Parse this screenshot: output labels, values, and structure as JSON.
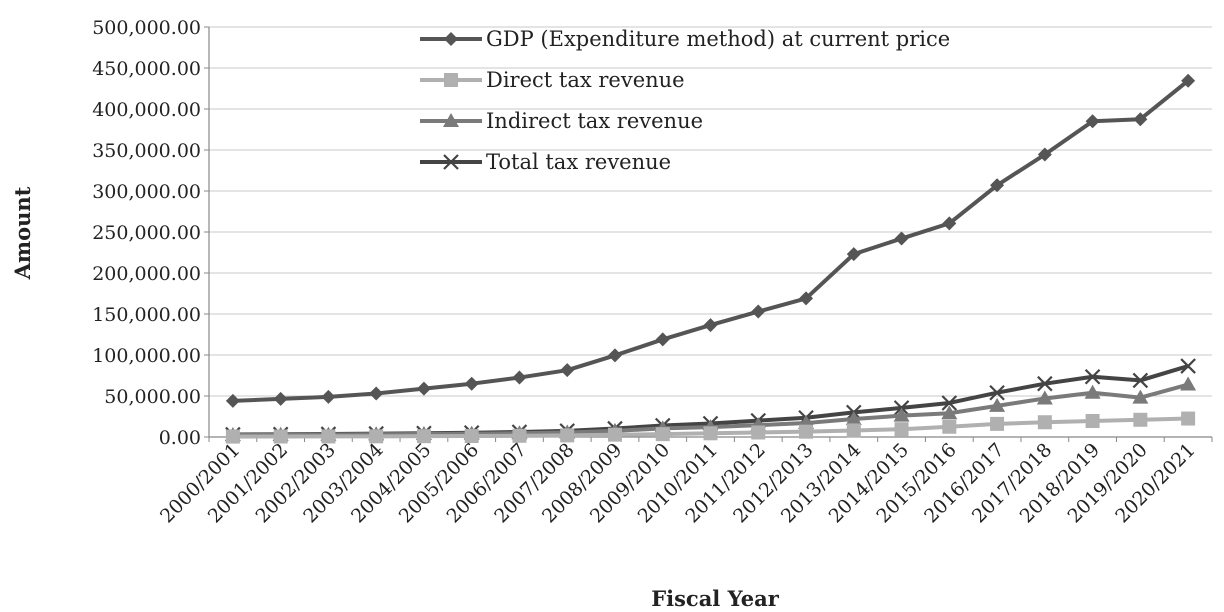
{
  "chart_data": {
    "type": "line",
    "xlabel": "Fiscal Year",
    "ylabel": "Amount",
    "ylim": [
      0,
      500000
    ],
    "yticks": [
      0,
      50000,
      100000,
      150000,
      200000,
      250000,
      300000,
      350000,
      400000,
      450000,
      500000
    ],
    "ytick_labels": [
      "0.00",
      "50,000.00",
      "100,000.00",
      "150,000.00",
      "200,000.00",
      "250,000.00",
      "300,000.00",
      "350,000.00",
      "400,000.00",
      "450,000.00",
      "500,000.00"
    ],
    "grid": true,
    "legend_position": "top-left",
    "categories": [
      "2000/2001",
      "2001/2002",
      "2002/2003",
      "2003/2004",
      "2004/2005",
      "2005/2006",
      "2006/2007",
      "2007/2008",
      "2008/2009",
      "2009/2010",
      "2010/2011",
      "2011/2012",
      "2012/2013",
      "2013/2014",
      "2014/2015",
      "2015/2016",
      "2016/2017",
      "2017/2018",
      "2018/2019",
      "2019/2020",
      "2020/2021"
    ],
    "series": [
      {
        "name": "GDP (Expenditure method) at current price",
        "color": "#555555",
        "marker": "diamond",
        "values": [
          44000,
          46500,
          49000,
          53000,
          59000,
          65000,
          72500,
          81500,
          99500,
          119000,
          136500,
          153000,
          169000,
          223000,
          242000,
          260500,
          307000,
          344500,
          385000,
          387500,
          434500
        ]
      },
      {
        "name": "Direct tax revenue",
        "color": "#b0b0b0",
        "marker": "square",
        "values": [
          500,
          600,
          700,
          800,
          1000,
          1200,
          1500,
          2000,
          2800,
          3500,
          4500,
          5500,
          6500,
          8000,
          9500,
          12500,
          16000,
          18000,
          19500,
          21000,
          22500
        ]
      },
      {
        "name": "Indirect tax revenue",
        "color": "#7a7a7a",
        "marker": "triangle",
        "values": [
          2500,
          2700,
          2900,
          3300,
          3600,
          4000,
          4600,
          5500,
          7500,
          10500,
          12000,
          14500,
          17000,
          22000,
          26000,
          29000,
          38000,
          47000,
          54000,
          48000,
          64000
        ]
      },
      {
        "name": "Total tax revenue",
        "color": "#444444",
        "marker": "x",
        "values": [
          3000,
          3300,
          3600,
          4100,
          4600,
          5200,
          6100,
          7500,
          10300,
          14000,
          16500,
          20000,
          23500,
          30000,
          35500,
          41500,
          54000,
          65000,
          73500,
          69000,
          86500
        ]
      }
    ]
  }
}
